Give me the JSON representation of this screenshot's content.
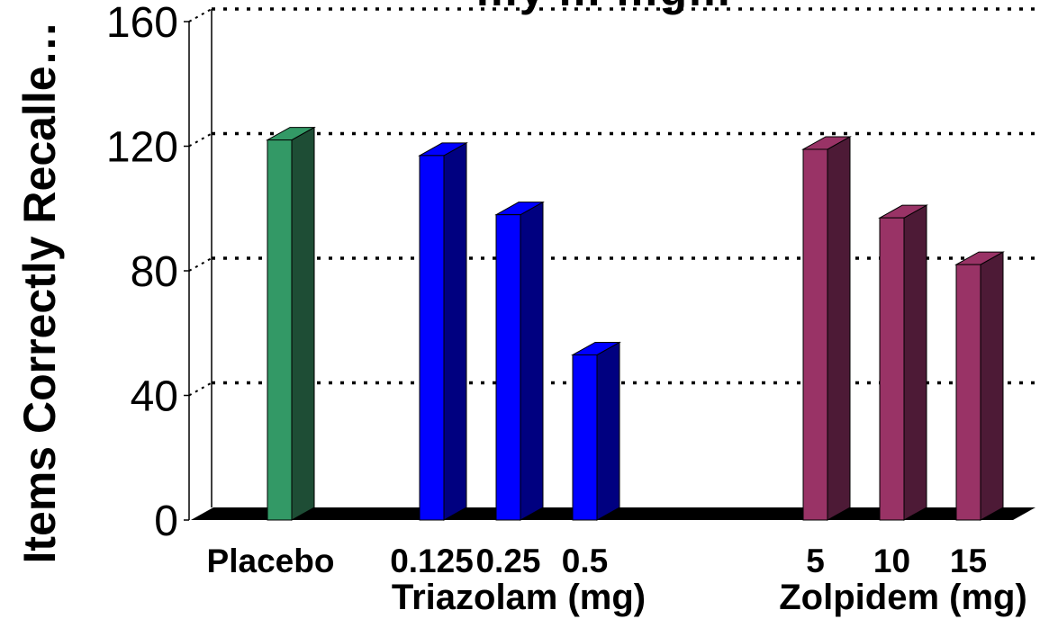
{
  "chart_data": {
    "type": "bar",
    "title": "…y … …g…",
    "ylabel": "Items Correctly Recalle…",
    "ylim": [
      0,
      160
    ],
    "yticks": [
      0,
      40,
      80,
      120,
      160
    ],
    "grid": true,
    "bars": [
      {
        "label": "Placebo",
        "value": 122,
        "group": "placebo",
        "color": "#339966",
        "side": "#1e4d35"
      },
      {
        "label": "0.125",
        "value": 117,
        "group": "triazolam",
        "color": "#0000ff",
        "side": "#000080"
      },
      {
        "label": "0.25",
        "value": 98,
        "group": "triazolam",
        "color": "#0000ff",
        "side": "#000080"
      },
      {
        "label": "0.5",
        "value": 53,
        "group": "triazolam",
        "color": "#0000ff",
        "side": "#000080"
      },
      {
        "label": "5",
        "value": 119,
        "group": "zolpidem",
        "color": "#993366",
        "side": "#4d1a36"
      },
      {
        "label": "10",
        "value": 97,
        "group": "zolpidem",
        "color": "#993366",
        "side": "#4d1a36"
      },
      {
        "label": "15",
        "value": 82,
        "group": "zolpidem",
        "color": "#993366",
        "side": "#4d1a36"
      }
    ],
    "group_labels": [
      {
        "key": "triazolam",
        "label": "Triazolam (mg)"
      },
      {
        "key": "zolpidem",
        "label": "Zolpidem (mg)"
      }
    ]
  }
}
